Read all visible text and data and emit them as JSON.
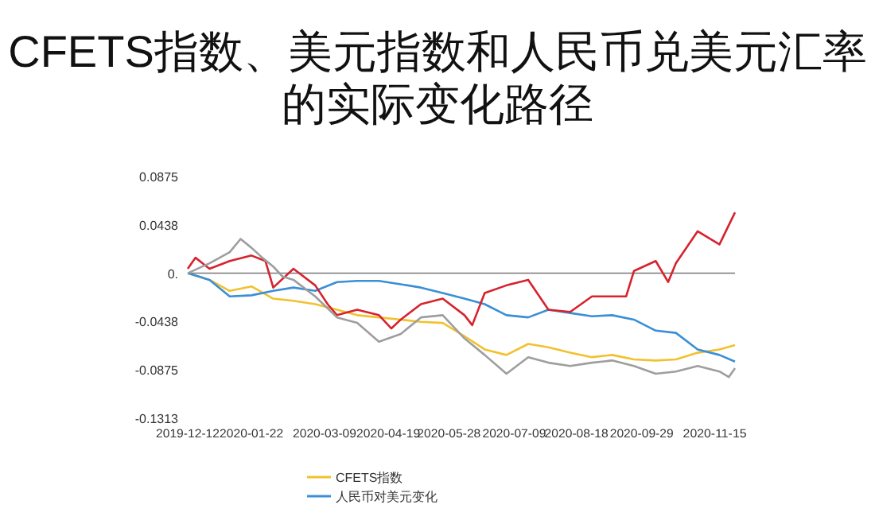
{
  "chart_data": {
    "type": "line",
    "title": "CFETS指数、美元指数和人民币兑美元汇率的实际变化路径",
    "xlim": [
      "2019-12-12",
      "2020-11-28"
    ],
    "xticks": [
      {
        "value": "2019-12-12",
        "label": "2019-12-12"
      },
      {
        "value": "2020-01-22",
        "label": "2020-01-22"
      },
      {
        "value": "2020-03-09",
        "label": "2020-03-09"
      },
      {
        "value": "2020-04-19",
        "label": "2020-04-19"
      },
      {
        "value": "2020-05-28",
        "label": "2020-05-28"
      },
      {
        "value": "2020-07-09",
        "label": "2020-07-09"
      },
      {
        "value": "2020-08-18",
        "label": "2020-08-18"
      },
      {
        "value": "2020-09-29",
        "label": "2020-09-29"
      },
      {
        "value": "2020-11-15",
        "label": "2020-11-15"
      }
    ],
    "ylim": [
      -0.1313,
      0.0875
    ],
    "yticks": [
      0.0875,
      0.0438,
      {
        "value": 0,
        "label": "0."
      },
      -0.0438,
      -0.0875,
      -0.1313
    ],
    "ref_lines": [
      {
        "axis": "y",
        "value": 0,
        "color": "#777777"
      }
    ],
    "grid": false,
    "legend": "bottom",
    "marker": "none",
    "line_style": "solid",
    "series": [
      {
        "name": "CFETS指数",
        "color": "#f2c12e",
        "x": [
          "2019-12-12",
          "2019-12-26",
          "2020-01-08",
          "2020-01-22",
          "2020-02-05",
          "2020-02-18",
          "2020-03-03",
          "2020-03-17",
          "2020-03-30",
          "2020-04-13",
          "2020-04-27",
          "2020-05-10",
          "2020-05-24",
          "2020-06-07",
          "2020-06-20",
          "2020-07-04",
          "2020-07-18",
          "2020-07-31",
          "2020-08-14",
          "2020-08-28",
          "2020-09-10",
          "2020-09-24",
          "2020-10-08",
          "2020-10-21",
          "2020-11-04",
          "2020-11-18",
          "2020-11-28"
        ],
        "values": [
          0,
          -0.006,
          -0.016,
          -0.012,
          -0.023,
          -0.025,
          -0.028,
          -0.033,
          -0.038,
          -0.04,
          -0.042,
          -0.044,
          -0.045,
          -0.057,
          -0.069,
          -0.074,
          -0.064,
          -0.067,
          -0.072,
          -0.076,
          -0.074,
          -0.078,
          -0.079,
          -0.078,
          -0.072,
          -0.069,
          -0.065
        ]
      },
      {
        "name": "人民币对美元变化",
        "color": "#3a8fd6",
        "x": [
          "2019-12-12",
          "2019-12-26",
          "2020-01-08",
          "2020-01-22",
          "2020-02-05",
          "2020-02-18",
          "2020-03-03",
          "2020-03-17",
          "2020-03-30",
          "2020-04-13",
          "2020-04-27",
          "2020-05-10",
          "2020-05-24",
          "2020-06-07",
          "2020-06-20",
          "2020-07-04",
          "2020-07-18",
          "2020-07-31",
          "2020-08-14",
          "2020-08-28",
          "2020-09-10",
          "2020-09-24",
          "2020-10-08",
          "2020-10-21",
          "2020-11-04",
          "2020-11-18",
          "2020-11-28"
        ],
        "values": [
          0,
          -0.006,
          -0.021,
          -0.02,
          -0.016,
          -0.013,
          -0.016,
          -0.008,
          -0.007,
          -0.007,
          -0.01,
          -0.013,
          -0.018,
          -0.023,
          -0.028,
          -0.038,
          -0.04,
          -0.033,
          -0.036,
          -0.039,
          -0.038,
          -0.042,
          -0.052,
          -0.054,
          -0.069,
          -0.074,
          -0.08
        ]
      },
      {
        "color": "#d6232d",
        "x": [
          "2019-12-12",
          "2019-12-17",
          "2019-12-26",
          "2020-01-08",
          "2020-01-22",
          "2020-01-31",
          "2020-02-05",
          "2020-02-18",
          "2020-03-03",
          "2020-03-11",
          "2020-03-17",
          "2020-03-30",
          "2020-04-13",
          "2020-04-21",
          "2020-04-27",
          "2020-05-10",
          "2020-05-24",
          "2020-06-07",
          "2020-06-12",
          "2020-06-20",
          "2020-07-04",
          "2020-07-18",
          "2020-07-31",
          "2020-08-14",
          "2020-08-28",
          "2020-09-10",
          "2020-09-19",
          "2020-09-24",
          "2020-10-08",
          "2020-10-16",
          "2020-10-21",
          "2020-11-04",
          "2020-11-18",
          "2020-11-28"
        ],
        "values": [
          0.004,
          0.014,
          0.004,
          0.011,
          0.016,
          0.011,
          -0.013,
          0.004,
          -0.011,
          -0.028,
          -0.038,
          -0.033,
          -0.038,
          -0.05,
          -0.042,
          -0.028,
          -0.023,
          -0.038,
          -0.047,
          -0.018,
          -0.011,
          -0.006,
          -0.033,
          -0.035,
          -0.021,
          -0.021,
          -0.021,
          0.002,
          0.011,
          -0.008,
          0.009,
          0.038,
          0.026,
          0.055
        ]
      },
      {
        "color": "#9e9e9e",
        "x": [
          "2019-12-12",
          "2019-12-26",
          "2020-01-08",
          "2020-01-15",
          "2020-01-22",
          "2020-01-29",
          "2020-02-05",
          "2020-02-11",
          "2020-02-18",
          "2020-03-03",
          "2020-03-17",
          "2020-03-30",
          "2020-04-13",
          "2020-04-27",
          "2020-05-10",
          "2020-05-24",
          "2020-06-07",
          "2020-06-20",
          "2020-07-04",
          "2020-07-18",
          "2020-07-31",
          "2020-08-14",
          "2020-08-28",
          "2020-09-10",
          "2020-09-24",
          "2020-10-08",
          "2020-10-21",
          "2020-11-04",
          "2020-11-18",
          "2020-11-24",
          "2020-11-28"
        ],
        "values": [
          0,
          0.009,
          0.019,
          0.031,
          0.023,
          0.014,
          0.006,
          -0.003,
          -0.006,
          -0.021,
          -0.04,
          -0.045,
          -0.062,
          -0.055,
          -0.04,
          -0.038,
          -0.059,
          -0.074,
          -0.091,
          -0.076,
          -0.081,
          -0.084,
          -0.081,
          -0.079,
          -0.084,
          -0.091,
          -0.089,
          -0.084,
          -0.089,
          -0.094,
          -0.086
        ]
      }
    ]
  }
}
